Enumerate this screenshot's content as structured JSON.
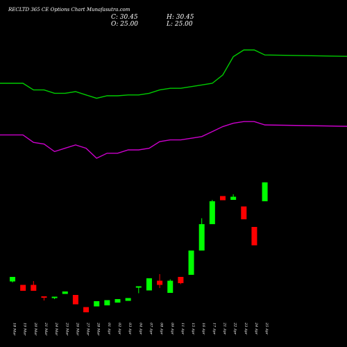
{
  "chart_data": {
    "type": "candlestick",
    "title": "RECLTD 365 CE Options Chart Munafasutra.com",
    "ohlc_labels": {
      "close": "C: 30.45",
      "high": "H: 30.45",
      "open": "O: 25.00",
      "low": "L: 25.00"
    },
    "x_categories": [
      "18 Mar",
      "19 Mar",
      "20 Mar",
      "21 Mar",
      "24 Mar",
      "25 Mar",
      "26 Mar",
      "27 Mar",
      "28 Mar",
      "01 Apr",
      "02 Apr",
      "03 Apr",
      "04 Apr",
      "07 Apr",
      "08 Apr",
      "09 Apr",
      "11 Apr",
      "15 Apr",
      "16 Apr",
      "17 Apr",
      "21 Apr",
      "22 Apr",
      "23 Apr",
      "24 Apr",
      "25 Apr"
    ],
    "x_labels": [
      "18 Mar",
      "19 Mar",
      "20 Mar",
      "21 Mar",
      "24 Mar",
      "25 Mar",
      "26 Mar",
      "27 Mar",
      "28 Mar",
      "01 Apr",
      "02 Apr",
      "03 Apr",
      "04 Apr",
      "07 Apr",
      "08 Apr",
      "09 Apr",
      "11 Apr",
      "15 Apr",
      "16 Apr",
      "17 Apr",
      "21 Apr",
      "22 Apr",
      "23 Apr",
      "24 Apr",
      "25 Apr"
    ],
    "candles": [
      {
        "open": 1.9,
        "close": 3.2,
        "high": 3.2,
        "low": 1.6
      },
      {
        "open": 0.9,
        "close": -0.8,
        "high": 0.9,
        "low": -0.8
      },
      {
        "open": 0.9,
        "close": -0.8,
        "high": 2.0,
        "low": -0.8
      },
      {
        "open": -2.4,
        "close": -2.7,
        "high": -2.4,
        "low": -3.6
      },
      {
        "open": -2.8,
        "close": -2.5,
        "high": -2.5,
        "low": -3.2
      },
      {
        "open": -1.7,
        "close": -1.0,
        "high": -1.0,
        "low": -1.7
      },
      {
        "open": -2.0,
        "close": -4.7,
        "high": -2.0,
        "low": -4.7
      },
      {
        "open": -5.5,
        "close": -7.0,
        "high": -5.5,
        "low": -7.0
      },
      {
        "open": -5.3,
        "close": -3.8,
        "high": -3.8,
        "low": -5.3
      },
      {
        "open": -5.0,
        "close": -3.5,
        "high": -3.5,
        "low": -5.0
      },
      {
        "open": -4.2,
        "close": -3.2,
        "high": -3.2,
        "low": -4.2
      },
      {
        "open": -3.7,
        "close": -2.9,
        "high": -2.9,
        "low": -3.7
      },
      {
        "open": 0.3,
        "close": 0.5,
        "high": 0.5,
        "low": -1.5
      },
      {
        "open": -0.7,
        "close": 2.8,
        "high": 2.8,
        "low": -0.7
      },
      {
        "open": 2.1,
        "close": 0.9,
        "high": 4.0,
        "low": 0.0
      },
      {
        "open": -1.4,
        "close": 2.1,
        "high": 2.5,
        "low": -1.4
      },
      {
        "open": 3.2,
        "close": 1.4,
        "high": 3.2,
        "low": 1.1
      },
      {
        "open": 3.8,
        "close": 10.8,
        "high": 10.8,
        "low": 3.8
      },
      {
        "open": 10.8,
        "close": 18.4,
        "high": 20.1,
        "low": 10.8
      },
      {
        "open": 18.4,
        "close": 25.0,
        "high": 25.4,
        "low": 18.4
      },
      {
        "open": 26.5,
        "close": 25.3,
        "high": 26.5,
        "low": 25.3
      },
      {
        "open": 25.4,
        "close": 26.3,
        "high": 27.0,
        "low": 25.4
      },
      {
        "open": 23.5,
        "close": 19.8,
        "high": 23.5,
        "low": 19.8
      },
      {
        "open": 17.6,
        "close": 12.3,
        "high": 17.6,
        "low": 12.3
      },
      {
        "open": 25.0,
        "close": 30.45,
        "high": 30.45,
        "low": 25.0
      }
    ],
    "upper_line": [
      105,
      105,
      101,
      101,
      99,
      99,
      100,
      98,
      96,
      97.5,
      97.5,
      98,
      98,
      99,
      101,
      102,
      102,
      103,
      104,
      105,
      110,
      121,
      125,
      125,
      122
    ],
    "lower_line": [
      74,
      74,
      69.5,
      68.5,
      64,
      66,
      68,
      66,
      60,
      63,
      63,
      65,
      65,
      66,
      70,
      71,
      71,
      72,
      73,
      76,
      79,
      81,
      82,
      82,
      80
    ],
    "ylim": [
      -8,
      32
    ],
    "colors": {
      "background": "#000000",
      "up": "#00ff00",
      "down": "#ff0000",
      "upper_line": "#00cc00",
      "lower_line": "#cc00cc",
      "text": "#ffffff"
    }
  }
}
